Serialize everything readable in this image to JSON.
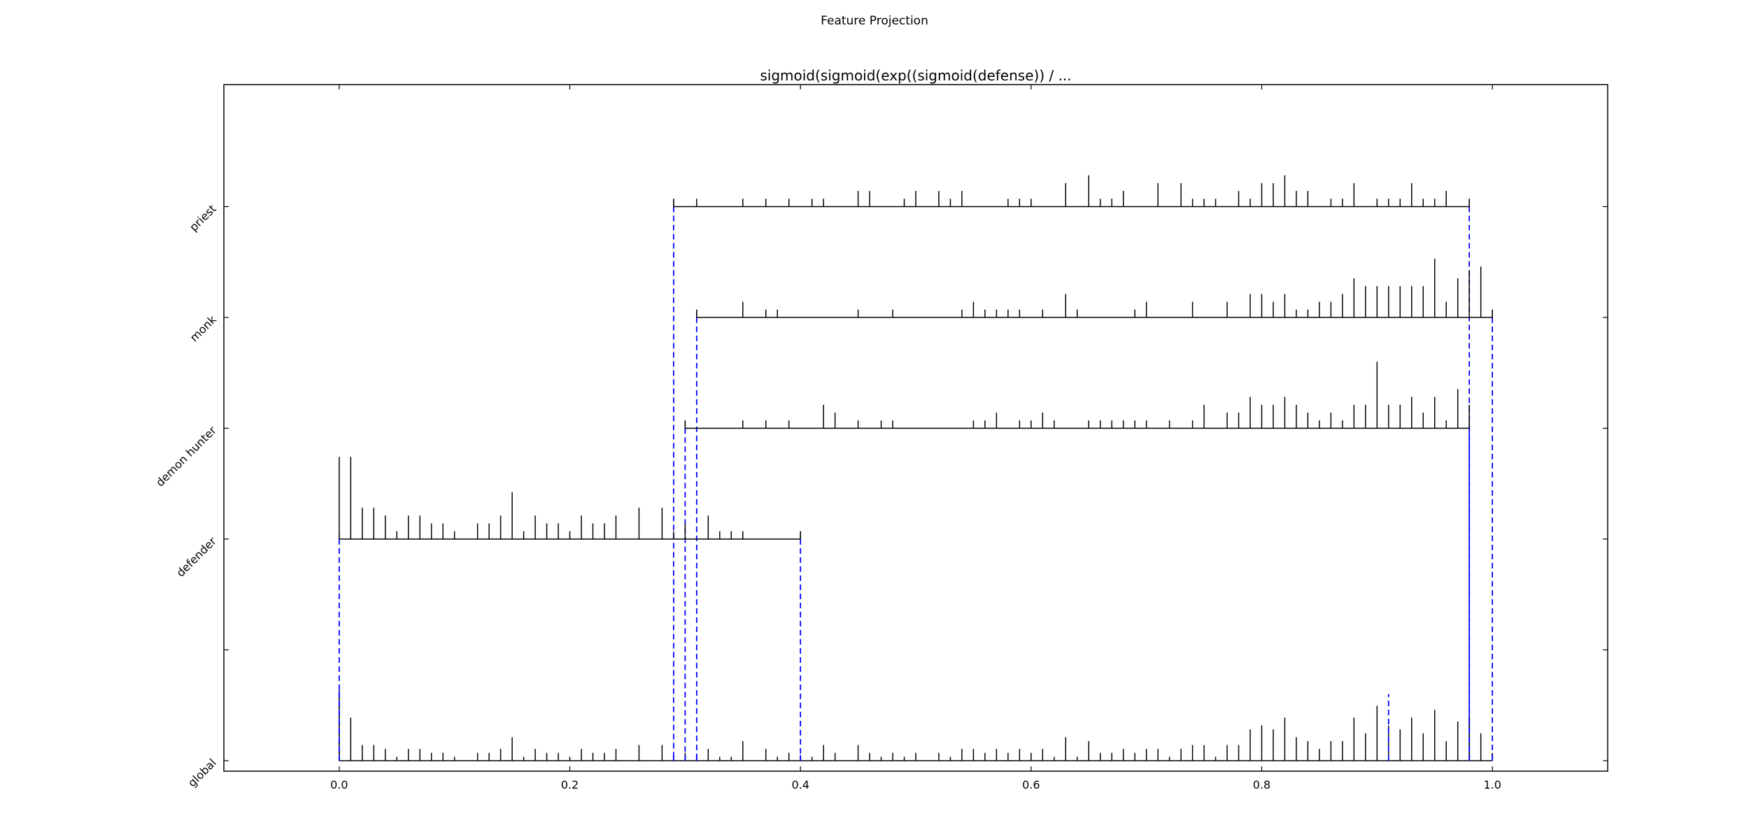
{
  "figure_title": "Feature Projection",
  "chart_data": {
    "type": "line",
    "title": "sigmoid(sigmoid(exp((sigmoid(defense)) / ...",
    "xlabel": "",
    "ylabel": "",
    "xlim": [
      -0.1,
      1.1
    ],
    "x_ticks": [
      "0.0",
      "0.2",
      "0.4",
      "0.6",
      "0.8",
      "1.0"
    ],
    "y_tick_labels": [
      "global",
      "",
      "defender",
      "demon hunter",
      "monk",
      "priest"
    ],
    "grid": false,
    "colors": {
      "stem": "#000000",
      "range_marker": "#0000ff"
    },
    "series": [
      {
        "name": "global",
        "range": [
          0.0,
          1.0
        ],
        "stems": [
          [
            0.0,
            0.18
          ],
          [
            0.01,
            0.11
          ],
          [
            0.02,
            0.04
          ],
          [
            0.03,
            0.04
          ],
          [
            0.04,
            0.03
          ],
          [
            0.05,
            0.01
          ],
          [
            0.06,
            0.03
          ],
          [
            0.07,
            0.03
          ],
          [
            0.08,
            0.02
          ],
          [
            0.09,
            0.02
          ],
          [
            0.1,
            0.01
          ],
          [
            0.12,
            0.02
          ],
          [
            0.13,
            0.02
          ],
          [
            0.14,
            0.03
          ],
          [
            0.15,
            0.06
          ],
          [
            0.16,
            0.01
          ],
          [
            0.17,
            0.03
          ],
          [
            0.18,
            0.02
          ],
          [
            0.19,
            0.02
          ],
          [
            0.2,
            0.01
          ],
          [
            0.21,
            0.03
          ],
          [
            0.22,
            0.02
          ],
          [
            0.23,
            0.02
          ],
          [
            0.24,
            0.03
          ],
          [
            0.26,
            0.04
          ],
          [
            0.28,
            0.04
          ],
          [
            0.29,
            0.01
          ],
          [
            0.3,
            0.02
          ],
          [
            0.31,
            0.01
          ],
          [
            0.32,
            0.03
          ],
          [
            0.33,
            0.01
          ],
          [
            0.34,
            0.01
          ],
          [
            0.35,
            0.05
          ],
          [
            0.37,
            0.03
          ],
          [
            0.38,
            0.01
          ],
          [
            0.39,
            0.02
          ],
          [
            0.4,
            0.01
          ],
          [
            0.41,
            0.01
          ],
          [
            0.42,
            0.04
          ],
          [
            0.43,
            0.02
          ],
          [
            0.45,
            0.04
          ],
          [
            0.46,
            0.02
          ],
          [
            0.47,
            0.01
          ],
          [
            0.48,
            0.02
          ],
          [
            0.49,
            0.01
          ],
          [
            0.5,
            0.02
          ],
          [
            0.52,
            0.02
          ],
          [
            0.53,
            0.01
          ],
          [
            0.54,
            0.03
          ],
          [
            0.55,
            0.03
          ],
          [
            0.56,
            0.02
          ],
          [
            0.57,
            0.03
          ],
          [
            0.58,
            0.02
          ],
          [
            0.59,
            0.03
          ],
          [
            0.6,
            0.02
          ],
          [
            0.61,
            0.03
          ],
          [
            0.62,
            0.01
          ],
          [
            0.63,
            0.06
          ],
          [
            0.64,
            0.01
          ],
          [
            0.65,
            0.05
          ],
          [
            0.66,
            0.02
          ],
          [
            0.67,
            0.02
          ],
          [
            0.68,
            0.03
          ],
          [
            0.69,
            0.02
          ],
          [
            0.7,
            0.03
          ],
          [
            0.71,
            0.03
          ],
          [
            0.72,
            0.01
          ],
          [
            0.73,
            0.03
          ],
          [
            0.74,
            0.04
          ],
          [
            0.75,
            0.04
          ],
          [
            0.76,
            0.01
          ],
          [
            0.77,
            0.04
          ],
          [
            0.78,
            0.04
          ],
          [
            0.79,
            0.08
          ],
          [
            0.8,
            0.09
          ],
          [
            0.81,
            0.08
          ],
          [
            0.82,
            0.11
          ],
          [
            0.83,
            0.06
          ],
          [
            0.84,
            0.05
          ],
          [
            0.85,
            0.03
          ],
          [
            0.86,
            0.05
          ],
          [
            0.87,
            0.05
          ],
          [
            0.88,
            0.11
          ],
          [
            0.89,
            0.07
          ],
          [
            0.9,
            0.14
          ],
          [
            0.91,
            0.09
          ],
          [
            0.92,
            0.08
          ],
          [
            0.93,
            0.11
          ],
          [
            0.94,
            0.07
          ],
          [
            0.95,
            0.13
          ],
          [
            0.96,
            0.05
          ],
          [
            0.97,
            0.1
          ],
          [
            0.98,
            0.11
          ],
          [
            0.99,
            0.07
          ],
          [
            1.0,
            0.01
          ]
        ]
      },
      {
        "name": "defender",
        "range": [
          0.0,
          0.4
        ],
        "stems": [
          [
            0.0,
            0.21
          ],
          [
            0.01,
            0.21
          ],
          [
            0.02,
            0.08
          ],
          [
            0.03,
            0.08
          ],
          [
            0.04,
            0.06
          ],
          [
            0.05,
            0.02
          ],
          [
            0.06,
            0.06
          ],
          [
            0.07,
            0.06
          ],
          [
            0.08,
            0.04
          ],
          [
            0.09,
            0.04
          ],
          [
            0.1,
            0.02
          ],
          [
            0.12,
            0.04
          ],
          [
            0.13,
            0.04
          ],
          [
            0.14,
            0.06
          ],
          [
            0.15,
            0.12
          ],
          [
            0.16,
            0.02
          ],
          [
            0.17,
            0.06
          ],
          [
            0.18,
            0.04
          ],
          [
            0.19,
            0.04
          ],
          [
            0.2,
            0.02
          ],
          [
            0.21,
            0.06
          ],
          [
            0.22,
            0.04
          ],
          [
            0.23,
            0.04
          ],
          [
            0.24,
            0.06
          ],
          [
            0.26,
            0.08
          ],
          [
            0.28,
            0.08
          ],
          [
            0.29,
            0.02
          ],
          [
            0.3,
            0.04
          ],
          [
            0.32,
            0.06
          ],
          [
            0.33,
            0.02
          ],
          [
            0.34,
            0.02
          ],
          [
            0.35,
            0.02
          ],
          [
            0.4,
            0.02
          ]
        ]
      },
      {
        "name": "demon hunter",
        "range": [
          0.3,
          0.98
        ],
        "stems": [
          [
            0.3,
            0.02
          ],
          [
            0.35,
            0.02
          ],
          [
            0.37,
            0.02
          ],
          [
            0.39,
            0.02
          ],
          [
            0.42,
            0.06
          ],
          [
            0.43,
            0.04
          ],
          [
            0.45,
            0.02
          ],
          [
            0.47,
            0.02
          ],
          [
            0.48,
            0.02
          ],
          [
            0.55,
            0.02
          ],
          [
            0.56,
            0.02
          ],
          [
            0.57,
            0.04
          ],
          [
            0.59,
            0.02
          ],
          [
            0.6,
            0.02
          ],
          [
            0.61,
            0.04
          ],
          [
            0.62,
            0.02
          ],
          [
            0.65,
            0.02
          ],
          [
            0.66,
            0.02
          ],
          [
            0.67,
            0.02
          ],
          [
            0.68,
            0.02
          ],
          [
            0.69,
            0.02
          ],
          [
            0.7,
            0.02
          ],
          [
            0.72,
            0.02
          ],
          [
            0.74,
            0.02
          ],
          [
            0.75,
            0.06
          ],
          [
            0.77,
            0.04
          ],
          [
            0.78,
            0.04
          ],
          [
            0.79,
            0.08
          ],
          [
            0.8,
            0.06
          ],
          [
            0.81,
            0.06
          ],
          [
            0.82,
            0.08
          ],
          [
            0.83,
            0.06
          ],
          [
            0.84,
            0.04
          ],
          [
            0.85,
            0.02
          ],
          [
            0.86,
            0.04
          ],
          [
            0.87,
            0.02
          ],
          [
            0.88,
            0.06
          ],
          [
            0.89,
            0.06
          ],
          [
            0.9,
            0.17
          ],
          [
            0.91,
            0.06
          ],
          [
            0.92,
            0.06
          ],
          [
            0.93,
            0.08
          ],
          [
            0.94,
            0.04
          ],
          [
            0.95,
            0.08
          ],
          [
            0.96,
            0.02
          ],
          [
            0.97,
            0.1
          ],
          [
            0.98,
            0.06
          ]
        ]
      },
      {
        "name": "monk",
        "range": [
          0.31,
          1.0
        ],
        "stems": [
          [
            0.31,
            0.02
          ],
          [
            0.35,
            0.04
          ],
          [
            0.37,
            0.02
          ],
          [
            0.38,
            0.02
          ],
          [
            0.45,
            0.02
          ],
          [
            0.48,
            0.02
          ],
          [
            0.54,
            0.02
          ],
          [
            0.55,
            0.04
          ],
          [
            0.56,
            0.02
          ],
          [
            0.57,
            0.02
          ],
          [
            0.58,
            0.02
          ],
          [
            0.59,
            0.02
          ],
          [
            0.61,
            0.02
          ],
          [
            0.63,
            0.06
          ],
          [
            0.64,
            0.02
          ],
          [
            0.69,
            0.02
          ],
          [
            0.7,
            0.04
          ],
          [
            0.74,
            0.04
          ],
          [
            0.77,
            0.04
          ],
          [
            0.79,
            0.06
          ],
          [
            0.8,
            0.06
          ],
          [
            0.81,
            0.04
          ],
          [
            0.82,
            0.06
          ],
          [
            0.83,
            0.02
          ],
          [
            0.84,
            0.02
          ],
          [
            0.85,
            0.04
          ],
          [
            0.86,
            0.04
          ],
          [
            0.87,
            0.06
          ],
          [
            0.88,
            0.1
          ],
          [
            0.89,
            0.08
          ],
          [
            0.9,
            0.08
          ],
          [
            0.91,
            0.08
          ],
          [
            0.92,
            0.08
          ],
          [
            0.93,
            0.08
          ],
          [
            0.94,
            0.08
          ],
          [
            0.95,
            0.15
          ],
          [
            0.96,
            0.04
          ],
          [
            0.97,
            0.1
          ],
          [
            0.98,
            0.12
          ],
          [
            0.99,
            0.13
          ],
          [
            1.0,
            0.02
          ]
        ]
      },
      {
        "name": "priest",
        "range": [
          0.29,
          0.98
        ],
        "stems": [
          [
            0.29,
            0.02
          ],
          [
            0.31,
            0.02
          ],
          [
            0.35,
            0.02
          ],
          [
            0.37,
            0.02
          ],
          [
            0.39,
            0.02
          ],
          [
            0.41,
            0.02
          ],
          [
            0.42,
            0.02
          ],
          [
            0.45,
            0.04
          ],
          [
            0.46,
            0.04
          ],
          [
            0.49,
            0.02
          ],
          [
            0.5,
            0.04
          ],
          [
            0.52,
            0.04
          ],
          [
            0.53,
            0.02
          ],
          [
            0.54,
            0.04
          ],
          [
            0.58,
            0.02
          ],
          [
            0.59,
            0.02
          ],
          [
            0.6,
            0.02
          ],
          [
            0.63,
            0.06
          ],
          [
            0.65,
            0.08
          ],
          [
            0.66,
            0.02
          ],
          [
            0.67,
            0.02
          ],
          [
            0.68,
            0.04
          ],
          [
            0.71,
            0.06
          ],
          [
            0.73,
            0.06
          ],
          [
            0.74,
            0.02
          ],
          [
            0.75,
            0.02
          ],
          [
            0.76,
            0.02
          ],
          [
            0.78,
            0.04
          ],
          [
            0.79,
            0.02
          ],
          [
            0.8,
            0.06
          ],
          [
            0.81,
            0.06
          ],
          [
            0.82,
            0.08
          ],
          [
            0.83,
            0.04
          ],
          [
            0.84,
            0.04
          ],
          [
            0.86,
            0.02
          ],
          [
            0.87,
            0.02
          ],
          [
            0.88,
            0.06
          ],
          [
            0.9,
            0.02
          ],
          [
            0.91,
            0.02
          ],
          [
            0.92,
            0.02
          ],
          [
            0.93,
            0.06
          ],
          [
            0.94,
            0.02
          ],
          [
            0.95,
            0.02
          ],
          [
            0.96,
            0.04
          ],
          [
            0.98,
            0.02
          ]
        ]
      }
    ],
    "global_markers": [
      {
        "x": 0.0,
        "top": 0.18
      },
      {
        "x": 0.29,
        "top": 0.02
      },
      {
        "x": 0.3,
        "top": 0.02
      },
      {
        "x": 0.31,
        "top": 0.02
      },
      {
        "x": 0.4,
        "top": 0.02
      },
      {
        "x": 0.91,
        "top": 0.17
      },
      {
        "x": 0.98,
        "top": 0.11
      },
      {
        "x": 1.0,
        "top": 0.02
      }
    ]
  }
}
